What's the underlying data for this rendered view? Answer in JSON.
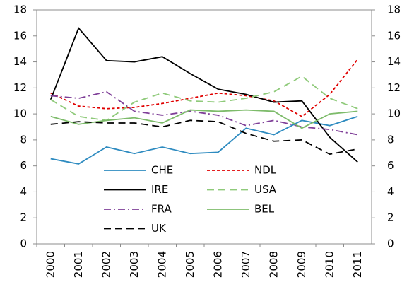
{
  "chart_data": {
    "type": "line",
    "categories": [
      "2000",
      "2001",
      "2002",
      "2003",
      "2004",
      "2005",
      "2006",
      "2007",
      "2008",
      "2009",
      "2010",
      "2011"
    ],
    "ylim": [
      0,
      18
    ],
    "yticks": [
      0,
      2,
      4,
      6,
      8,
      10,
      12,
      14,
      16,
      18
    ],
    "y2lim": [
      0,
      18
    ],
    "y2ticks": [
      0,
      2,
      4,
      6,
      8,
      10,
      12,
      14,
      16,
      18
    ],
    "grid": false,
    "series": [
      {
        "name": "CHE",
        "color": "#2e8bc0",
        "dash": "none",
        "values": [
          6.55,
          6.15,
          7.45,
          6.95,
          7.45,
          6.95,
          7.05,
          8.9,
          8.4,
          9.5,
          9.1,
          9.8
        ]
      },
      {
        "name": "NDL",
        "color": "#e00000",
        "dash": "4,3",
        "values": [
          11.6,
          10.6,
          10.4,
          10.5,
          10.8,
          11.2,
          11.6,
          11.4,
          11.0,
          9.8,
          11.5,
          14.2
        ]
      },
      {
        "name": "IRE",
        "color": "#000000",
        "dash": "none",
        "values": [
          11.1,
          16.6,
          14.1,
          14.0,
          14.4,
          13.1,
          11.9,
          11.5,
          10.9,
          11.0,
          8.2,
          6.3
        ]
      },
      {
        "name": "USA",
        "color": "#8fca7a",
        "dash": "10,6",
        "values": [
          11.1,
          9.8,
          9.5,
          10.9,
          11.6,
          11.0,
          10.9,
          11.2,
          11.7,
          12.9,
          11.2,
          10.4
        ]
      },
      {
        "name": "FRA",
        "color": "#7f3f98",
        "dash": "10,4,2,4",
        "values": [
          11.4,
          11.2,
          11.7,
          10.2,
          9.9,
          10.2,
          9.9,
          9.1,
          9.5,
          9.0,
          8.8,
          8.4
        ]
      },
      {
        "name": "BEL",
        "color": "#7dbb6a",
        "dash": "none",
        "values": [
          9.8,
          9.2,
          9.5,
          9.7,
          9.3,
          10.3,
          10.2,
          10.3,
          10.2,
          8.9,
          10.0,
          10.2
        ]
      },
      {
        "name": "UK",
        "color": "#000000",
        "dash": "10,6",
        "values": [
          9.2,
          9.4,
          9.3,
          9.3,
          9.0,
          9.5,
          9.4,
          8.5,
          7.9,
          8.0,
          6.9,
          7.3
        ]
      }
    ]
  }
}
